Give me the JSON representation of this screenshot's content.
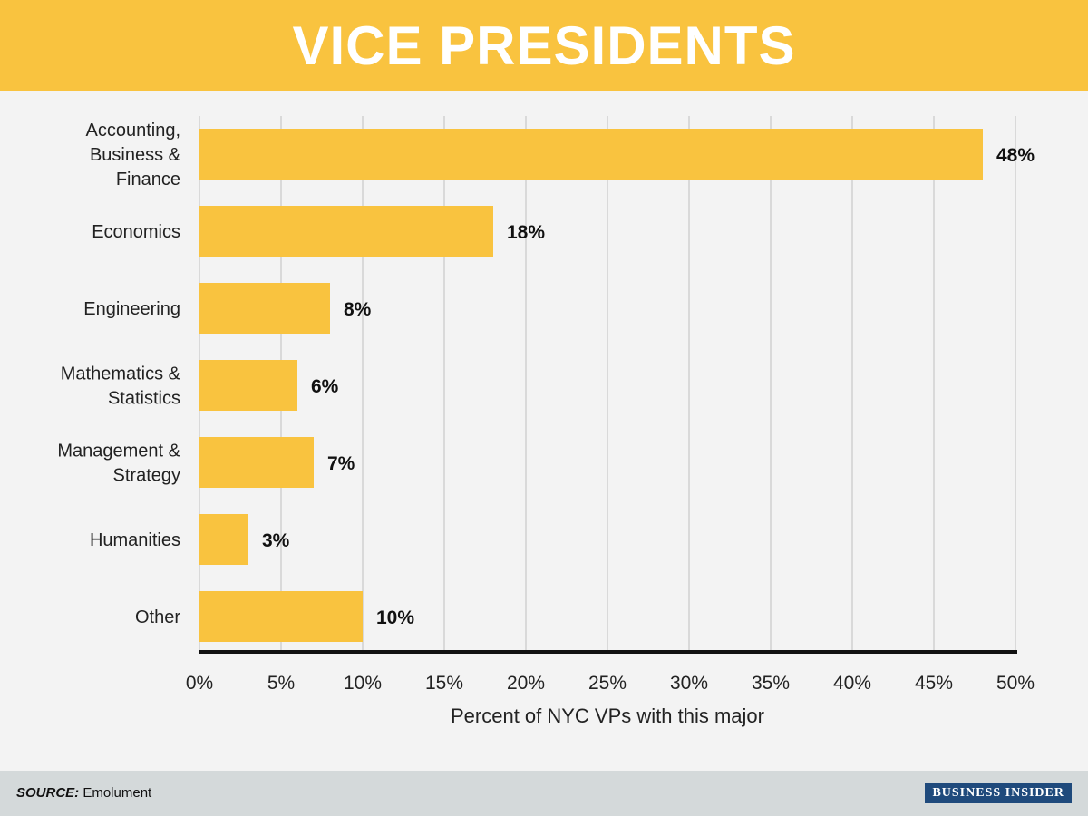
{
  "header": {
    "title": "VICE PRESIDENTS"
  },
  "footer": {
    "source_label": "SOURCE:",
    "source_value": "Emolument",
    "brand": "BUSINESS INSIDER"
  },
  "colors": {
    "bar": "#f9c33f",
    "header": "#f9c33f",
    "grid": "#d9d9d9",
    "axis": "#111111",
    "text": "#222222",
    "value_label": "#111111"
  },
  "chart_data": {
    "type": "bar",
    "orientation": "horizontal",
    "title": "VICE PRESIDENTS",
    "xlabel": "Percent of NYC VPs with this major",
    "ylabel": "",
    "categories": [
      [
        "Accounting,",
        "Business &",
        "Finance"
      ],
      [
        "Economics"
      ],
      [
        "Engineering"
      ],
      [
        "Mathematics &",
        "Statistics"
      ],
      [
        "Management &",
        "Strategy"
      ],
      [
        "Humanities"
      ],
      [
        "Other"
      ]
    ],
    "values": [
      48,
      18,
      8,
      6,
      7,
      3,
      10
    ],
    "value_labels": [
      "48%",
      "18%",
      "8%",
      "6%",
      "7%",
      "3%",
      "10%"
    ],
    "xlim": [
      0,
      50
    ],
    "xticks": [
      0,
      5,
      10,
      15,
      20,
      25,
      30,
      35,
      40,
      45,
      50
    ],
    "xtick_labels": [
      "0%",
      "5%",
      "10%",
      "15%",
      "20%",
      "25%",
      "30%",
      "35%",
      "40%",
      "45%",
      "50%"
    ],
    "grid": true
  }
}
